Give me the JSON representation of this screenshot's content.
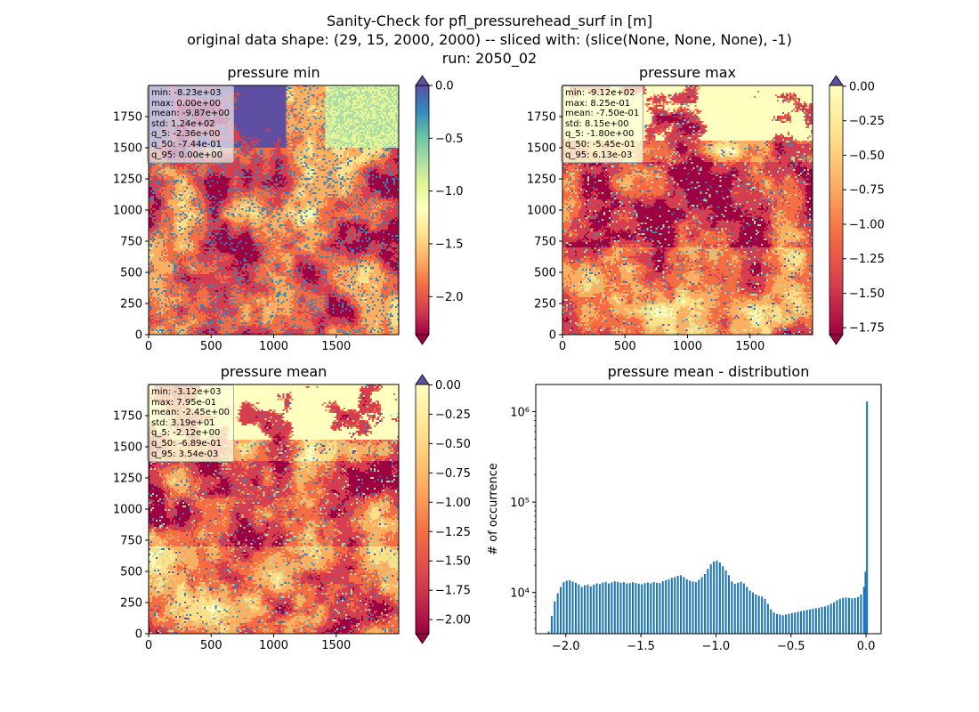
{
  "figure": {
    "title_line1": "Sanity-Check for pfl_pressurehead_surf in [m]",
    "title_line2": "original data shape: (29, 15, 2000, 2000) -- sliced with: (slice(None, None, None), -1)",
    "title_line3": "run: 2050_02"
  },
  "colors": {
    "spectral": [
      "#9e0142",
      "#d53e4f",
      "#f46d43",
      "#fdae61",
      "#fee08b",
      "#ffffbf",
      "#e6f598",
      "#abdda4",
      "#66c2a5",
      "#3288bd",
      "#5e4fa2"
    ],
    "hist_bar": "#1f77b4"
  },
  "panels": [
    {
      "title": "pressure min",
      "x_ticks": [
        "0",
        "500",
        "1000",
        "1500"
      ],
      "y_ticks": [
        "0",
        "250",
        "500",
        "750",
        "1000",
        "1250",
        "1500",
        "1750"
      ],
      "stats": [
        "min: -8.23e+03",
        "max: 0.00e+00",
        "mean: -9.87e+00",
        "std: 1.24e+02",
        "q_5: -2.36e+00",
        "q_50: -7.44e-01",
        "q_95: 0.00e+00"
      ],
      "colorbar": {
        "vmin": -2.36,
        "vmax": 0.0,
        "ticks": [
          "0.0",
          "−0.5",
          "−1.0",
          "−1.5",
          "−2.0"
        ],
        "tick_values": [
          0.0,
          -0.5,
          -1.0,
          -1.5,
          -2.0
        ]
      }
    },
    {
      "title": "pressure max",
      "x_ticks": [
        "0",
        "500",
        "1000",
        "1500"
      ],
      "y_ticks": [
        "0",
        "250",
        "500",
        "750",
        "1000",
        "1250",
        "1500",
        "1750"
      ],
      "stats": [
        "min: -9.12e+02",
        "max: 8.25e-01",
        "mean: -7.50e-01",
        "std: 8.15e+00",
        "q_5: -1.80e+00",
        "q_50: -5.45e-01",
        "q_95: 6.13e-03"
      ],
      "colorbar": {
        "vmin": -1.8,
        "vmax": 0.006,
        "ticks": [
          "0.00",
          "−0.25",
          "−0.50",
          "−0.75",
          "−1.00",
          "−1.25",
          "−1.50",
          "−1.75"
        ],
        "tick_values": [
          0.0,
          -0.25,
          -0.5,
          -0.75,
          -1.0,
          -1.25,
          -1.5,
          -1.75
        ]
      }
    },
    {
      "title": "pressure mean",
      "x_ticks": [
        "0",
        "500",
        "1000",
        "1500"
      ],
      "y_ticks": [
        "0",
        "250",
        "500",
        "750",
        "1000",
        "1250",
        "1500",
        "1750"
      ],
      "stats": [
        "min: -3.12e+03",
        "max: 7.95e-01",
        "mean: -2.45e+00",
        "std: 3.19e+01",
        "q_5: -2.12e+00",
        "q_50: -6.89e-01",
        "q_95: 3.54e-03"
      ],
      "colorbar": {
        "vmin": -2.12,
        "vmax": 0.0035,
        "ticks": [
          "0.00",
          "−0.25",
          "−0.50",
          "−0.75",
          "−1.00",
          "−1.25",
          "−1.50",
          "−1.75",
          "−2.00"
        ],
        "tick_values": [
          0.0,
          -0.25,
          -0.5,
          -0.75,
          -1.0,
          -1.25,
          -1.5,
          -1.75,
          -2.0
        ]
      }
    }
  ],
  "chart_data": {
    "type": "bar",
    "title": "pressure mean - distribution",
    "xlabel": "",
    "ylabel": "# of occurrence",
    "y_scale": "log",
    "xlim": [
      -2.2,
      0.1
    ],
    "ylim": [
      3500,
      2000000
    ],
    "x_ticks": [
      "−2.0",
      "−1.5",
      "−1.0",
      "−0.5",
      "0.0"
    ],
    "x_tick_values": [
      -2.0,
      -1.5,
      -1.0,
      -0.5,
      0.0
    ],
    "y_ticks": [
      "10⁴",
      "10⁵",
      "10⁶"
    ],
    "y_tick_values": [
      10000,
      100000,
      1000000
    ],
    "bin_width": 0.0106,
    "bins": [
      [
        -2.12,
        3700
      ],
      [
        -2.1,
        5500
      ],
      [
        -2.08,
        8000
      ],
      [
        -2.06,
        9800
      ],
      [
        -2.04,
        11500
      ],
      [
        -2.02,
        13000
      ],
      [
        -2.0,
        13500
      ],
      [
        -1.98,
        13600
      ],
      [
        -1.96,
        13200
      ],
      [
        -1.94,
        12800
      ],
      [
        -1.92,
        12300
      ],
      [
        -1.9,
        11500
      ],
      [
        -1.88,
        12000
      ],
      [
        -1.86,
        12200
      ],
      [
        -1.84,
        11700
      ],
      [
        -1.82,
        12200
      ],
      [
        -1.8,
        12600
      ],
      [
        -1.78,
        12400
      ],
      [
        -1.76,
        12900
      ],
      [
        -1.74,
        13100
      ],
      [
        -1.72,
        12600
      ],
      [
        -1.7,
        12900
      ],
      [
        -1.68,
        13300
      ],
      [
        -1.66,
        13100
      ],
      [
        -1.64,
        12800
      ],
      [
        -1.62,
        13000
      ],
      [
        -1.6,
        12600
      ],
      [
        -1.58,
        12700
      ],
      [
        -1.56,
        13000
      ],
      [
        -1.54,
        12700
      ],
      [
        -1.52,
        12500
      ],
      [
        -1.5,
        12300
      ],
      [
        -1.48,
        12700
      ],
      [
        -1.46,
        12900
      ],
      [
        -1.44,
        12600
      ],
      [
        -1.42,
        13000
      ],
      [
        -1.4,
        12800
      ],
      [
        -1.38,
        12700
      ],
      [
        -1.36,
        13300
      ],
      [
        -1.34,
        13700
      ],
      [
        -1.32,
        14000
      ],
      [
        -1.3,
        14500
      ],
      [
        -1.28,
        14800
      ],
      [
        -1.26,
        15300
      ],
      [
        -1.24,
        15500
      ],
      [
        -1.22,
        14800
      ],
      [
        -1.2,
        14000
      ],
      [
        -1.18,
        13500
      ],
      [
        -1.16,
        13200
      ],
      [
        -1.14,
        13000
      ],
      [
        -1.12,
        13800
      ],
      [
        -1.1,
        14800
      ],
      [
        -1.08,
        16000
      ],
      [
        -1.06,
        18200
      ],
      [
        -1.04,
        20500
      ],
      [
        -1.02,
        22000
      ],
      [
        -1.0,
        22500
      ],
      [
        -0.98,
        21500
      ],
      [
        -0.96,
        19500
      ],
      [
        -0.94,
        17500
      ],
      [
        -0.92,
        15500
      ],
      [
        -0.9,
        13200
      ],
      [
        -0.88,
        12500
      ],
      [
        -0.86,
        12800
      ],
      [
        -0.84,
        13100
      ],
      [
        -0.82,
        12600
      ],
      [
        -0.8,
        11500
      ],
      [
        -0.78,
        10500
      ],
      [
        -0.76,
        10000
      ],
      [
        -0.74,
        9500
      ],
      [
        -0.72,
        9200
      ],
      [
        -0.7,
        9000
      ],
      [
        -0.68,
        8500
      ],
      [
        -0.66,
        7500
      ],
      [
        -0.64,
        6500
      ],
      [
        -0.62,
        6000
      ],
      [
        -0.6,
        5800
      ],
      [
        -0.58,
        5700
      ],
      [
        -0.56,
        5600
      ],
      [
        -0.54,
        5700
      ],
      [
        -0.52,
        5800
      ],
      [
        -0.5,
        5900
      ],
      [
        -0.48,
        6000
      ],
      [
        -0.46,
        6100
      ],
      [
        -0.44,
        6200
      ],
      [
        -0.42,
        6300
      ],
      [
        -0.4,
        6400
      ],
      [
        -0.38,
        6500
      ],
      [
        -0.36,
        6600
      ],
      [
        -0.34,
        6700
      ],
      [
        -0.32,
        6800
      ],
      [
        -0.3,
        6900
      ],
      [
        -0.28,
        7000
      ],
      [
        -0.26,
        7200
      ],
      [
        -0.24,
        7500
      ],
      [
        -0.22,
        7800
      ],
      [
        -0.2,
        8200
      ],
      [
        -0.18,
        8500
      ],
      [
        -0.16,
        8700
      ],
      [
        -0.14,
        8800
      ],
      [
        -0.12,
        8700
      ],
      [
        -0.1,
        8600
      ],
      [
        -0.08,
        8700
      ],
      [
        -0.06,
        8900
      ],
      [
        -0.04,
        9500
      ],
      [
        -0.02,
        11500
      ],
      [
        -0.01,
        17000
      ],
      [
        0.0,
        1300000
      ]
    ]
  }
}
